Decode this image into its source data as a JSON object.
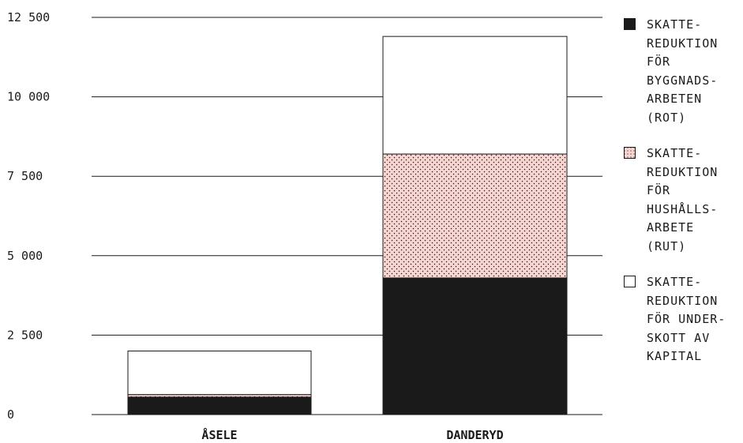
{
  "chart_data": {
    "type": "bar",
    "stacked": true,
    "categories": [
      "ÅSELE",
      "DANDERYD"
    ],
    "series": [
      {
        "name": "SKATTE-\nREDUKTION\nFÖR\nBYGGNADS-\nARBETEN\n(ROT)",
        "values": [
          550,
          4300
        ],
        "color": "#1a1a1a",
        "pattern": "solid"
      },
      {
        "name": "SKATTE-\nREDUKTION\nFÖR\nHUSHÅLLS-\nARBETE\n(RUT)",
        "values": [
          80,
          3900
        ],
        "color": "#f9d5d2",
        "pattern": "dotted"
      },
      {
        "name": "SKATTE-\nREDUKTION\nFÖR UNDER-\nSKOTT AV\nKAPITAL",
        "values": [
          1370,
          3700
        ],
        "color": "#ffffff",
        "pattern": "outline"
      }
    ],
    "ylim": [
      0,
      12500
    ],
    "yticks": [
      0,
      2500,
      5000,
      7500,
      10000,
      12500
    ],
    "ytick_labels": [
      "0",
      "2 500",
      "5 000",
      "7 500",
      "10 000",
      "12 500"
    ],
    "grid": true,
    "legend_position": "right",
    "xlabel": "",
    "ylabel": "",
    "title": ""
  }
}
